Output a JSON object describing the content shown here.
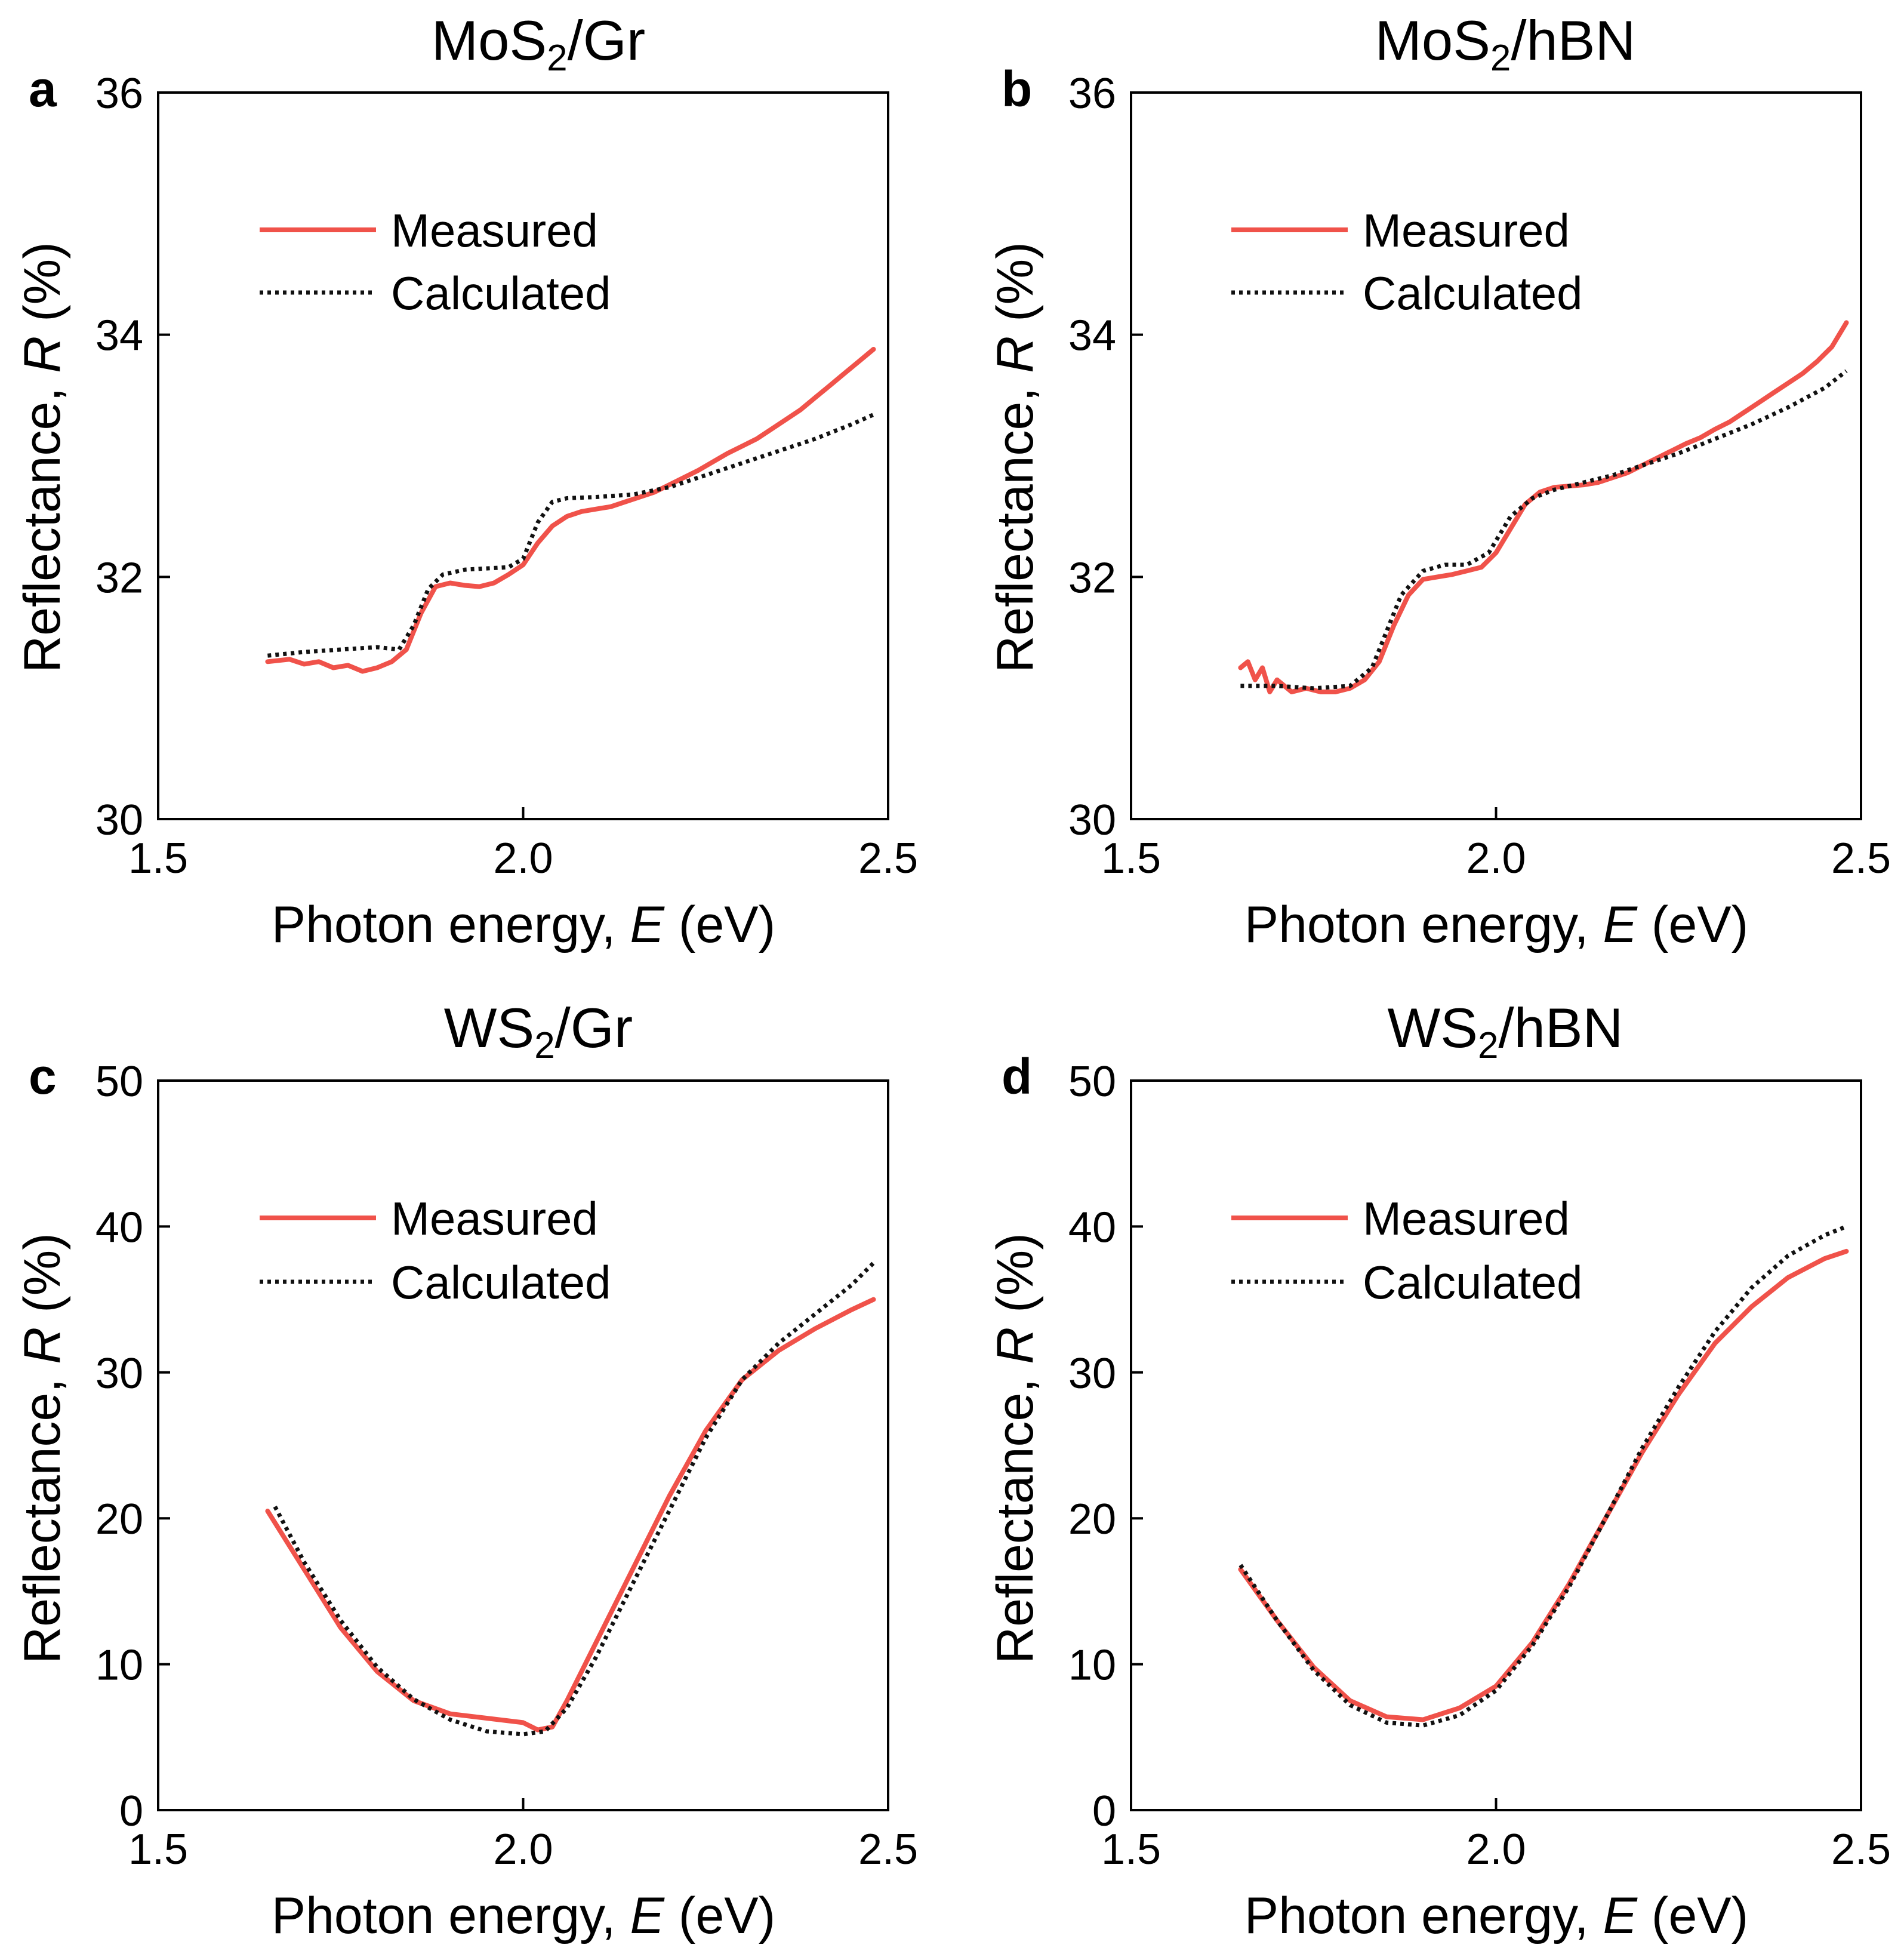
{
  "figure": {
    "colors": {
      "measured": "#f0524a",
      "calculated": "#111111",
      "axis": "#000000"
    },
    "legend": {
      "measured": "Measured",
      "calculated": "Calculated",
      "placement": "top-left"
    }
  },
  "chart_data": [
    {
      "id": "a",
      "panel_letter": "a",
      "type": "line",
      "title": {
        "base": "MoS",
        "sub": "2",
        "rest": "/Gr"
      },
      "xlabel": {
        "before": "Photon energy, ",
        "var": "E",
        "after": " (eV)"
      },
      "ylabel": {
        "before": "Reflectance, ",
        "var": "R",
        "after": " (%)"
      },
      "xlim": [
        1.5,
        2.5
      ],
      "ylim": [
        30,
        36
      ],
      "xticks": [
        1.5,
        2.0,
        2.5
      ],
      "xtick_labels": [
        "1.5",
        "2.0",
        "2.5"
      ],
      "yticks": [
        30,
        32,
        34,
        36
      ],
      "ytick_labels": [
        "30",
        "32",
        "34",
        "36"
      ],
      "series": [
        {
          "name": "Measured",
          "style": "solid",
          "x": [
            1.65,
            1.68,
            1.7,
            1.72,
            1.74,
            1.76,
            1.78,
            1.8,
            1.82,
            1.84,
            1.86,
            1.88,
            1.9,
            1.92,
            1.94,
            1.96,
            1.98,
            2.0,
            2.02,
            2.04,
            2.06,
            2.08,
            2.1,
            2.12,
            2.14,
            2.16,
            2.18,
            2.2,
            2.22,
            2.24,
            2.26,
            2.28,
            2.3,
            2.32,
            2.34,
            2.36,
            2.38,
            2.4,
            2.42,
            2.44,
            2.46,
            2.48
          ],
          "y": [
            31.3,
            31.32,
            31.28,
            31.3,
            31.25,
            31.27,
            31.22,
            31.25,
            31.3,
            31.4,
            31.7,
            31.92,
            31.95,
            31.93,
            31.92,
            31.95,
            32.02,
            32.1,
            32.28,
            32.42,
            32.5,
            32.54,
            32.56,
            32.58,
            32.62,
            32.66,
            32.7,
            32.76,
            32.82,
            32.88,
            32.95,
            33.02,
            33.08,
            33.14,
            33.22,
            33.3,
            33.38,
            33.48,
            33.58,
            33.68,
            33.78,
            33.88
          ]
        },
        {
          "name": "Calculated",
          "style": "dotted",
          "x": [
            1.65,
            1.7,
            1.75,
            1.8,
            1.83,
            1.85,
            1.87,
            1.89,
            1.92,
            1.95,
            1.98,
            2.0,
            2.02,
            2.04,
            2.06,
            2.1,
            2.15,
            2.2,
            2.25,
            2.3,
            2.35,
            2.4,
            2.45,
            2.48
          ],
          "y": [
            31.35,
            31.38,
            31.4,
            31.42,
            31.4,
            31.6,
            31.9,
            32.02,
            32.06,
            32.07,
            32.08,
            32.15,
            32.45,
            32.62,
            32.65,
            32.66,
            32.68,
            32.74,
            32.84,
            32.94,
            33.04,
            33.14,
            33.26,
            33.34
          ]
        }
      ]
    },
    {
      "id": "b",
      "panel_letter": "b",
      "type": "line",
      "title": {
        "base": "MoS",
        "sub": "2",
        "rest": "/hBN"
      },
      "xlabel": {
        "before": "Photon energy, ",
        "var": "E",
        "after": " (eV)"
      },
      "ylabel": {
        "before": "Reflectance, ",
        "var": "R",
        "after": " (%)"
      },
      "xlim": [
        1.5,
        2.5
      ],
      "ylim": [
        30,
        36
      ],
      "xticks": [
        1.5,
        2.0,
        2.5
      ],
      "xtick_labels": [
        "1.5",
        "2.0",
        "2.5"
      ],
      "yticks": [
        30,
        32,
        34,
        36
      ],
      "ytick_labels": [
        "30",
        "32",
        "34",
        "36"
      ],
      "series": [
        {
          "name": "Measured",
          "style": "solid",
          "x": [
            1.65,
            1.66,
            1.67,
            1.68,
            1.69,
            1.7,
            1.72,
            1.74,
            1.76,
            1.78,
            1.8,
            1.82,
            1.84,
            1.86,
            1.88,
            1.9,
            1.92,
            1.94,
            1.96,
            1.98,
            2.0,
            2.02,
            2.04,
            2.06,
            2.08,
            2.1,
            2.12,
            2.14,
            2.16,
            2.18,
            2.2,
            2.22,
            2.24,
            2.26,
            2.28,
            2.3,
            2.32,
            2.34,
            2.36,
            2.38,
            2.4,
            2.42,
            2.44,
            2.46,
            2.47,
            2.48
          ],
          "y": [
            31.25,
            31.3,
            31.15,
            31.25,
            31.05,
            31.15,
            31.05,
            31.08,
            31.05,
            31.05,
            31.08,
            31.15,
            31.3,
            31.6,
            31.85,
            31.98,
            32.0,
            32.02,
            32.05,
            32.08,
            32.2,
            32.4,
            32.6,
            32.7,
            32.74,
            32.75,
            32.76,
            32.78,
            32.82,
            32.86,
            32.92,
            32.98,
            33.04,
            33.1,
            33.15,
            33.22,
            33.28,
            33.36,
            33.44,
            33.52,
            33.6,
            33.68,
            33.78,
            33.9,
            34.0,
            34.1
          ]
        },
        {
          "name": "Calculated",
          "style": "dotted",
          "x": [
            1.65,
            1.7,
            1.75,
            1.8,
            1.83,
            1.85,
            1.87,
            1.9,
            1.93,
            1.96,
            1.99,
            2.02,
            2.05,
            2.08,
            2.12,
            2.16,
            2.2,
            2.25,
            2.3,
            2.35,
            2.4,
            2.45,
            2.48
          ],
          "y": [
            31.1,
            31.1,
            31.08,
            31.1,
            31.25,
            31.55,
            31.85,
            32.05,
            32.1,
            32.1,
            32.2,
            32.5,
            32.65,
            32.72,
            32.78,
            32.84,
            32.92,
            33.02,
            33.14,
            33.26,
            33.4,
            33.56,
            33.7
          ]
        }
      ]
    },
    {
      "id": "c",
      "panel_letter": "c",
      "type": "line",
      "title": {
        "base": "WS",
        "sub": "2",
        "rest": "/Gr"
      },
      "xlabel": {
        "before": "Photon energy, ",
        "var": "E",
        "after": " (eV)"
      },
      "ylabel": {
        "before": "Reflectance, ",
        "var": "R",
        "after": " (%)"
      },
      "xlim": [
        1.5,
        2.5
      ],
      "ylim": [
        0,
        50
      ],
      "xticks": [
        1.5,
        2.0,
        2.5
      ],
      "xtick_labels": [
        "1.5",
        "2.0",
        "2.5"
      ],
      "yticks": [
        0,
        10,
        20,
        30,
        40,
        50
      ],
      "ytick_labels": [
        "0",
        "10",
        "20",
        "30",
        "40",
        "50"
      ],
      "series": [
        {
          "name": "Measured",
          "style": "solid",
          "x": [
            1.65,
            1.7,
            1.75,
            1.8,
            1.85,
            1.9,
            1.95,
            2.0,
            2.02,
            2.04,
            2.06,
            2.1,
            2.15,
            2.2,
            2.25,
            2.3,
            2.35,
            2.4,
            2.45,
            2.48
          ],
          "y": [
            20.5,
            16.5,
            12.5,
            9.5,
            7.5,
            6.6,
            6.3,
            6.0,
            5.5,
            5.7,
            7.5,
            11.5,
            16.5,
            21.5,
            26.0,
            29.5,
            31.5,
            33.0,
            34.3,
            35.0
          ]
        },
        {
          "name": "Calculated",
          "style": "dotted",
          "x": [
            1.66,
            1.7,
            1.75,
            1.8,
            1.85,
            1.9,
            1.95,
            2.0,
            2.03,
            2.06,
            2.1,
            2.15,
            2.2,
            2.25,
            2.3,
            2.35,
            2.4,
            2.45,
            2.48
          ],
          "y": [
            20.8,
            17.0,
            13.0,
            9.8,
            7.6,
            6.2,
            5.4,
            5.2,
            5.4,
            7.0,
            10.5,
            15.5,
            20.5,
            25.5,
            29.5,
            32.0,
            34.0,
            36.0,
            37.5
          ]
        }
      ]
    },
    {
      "id": "d",
      "panel_letter": "d",
      "type": "line",
      "title": {
        "base": "WS",
        "sub": "2",
        "rest": "/hBN"
      },
      "xlabel": {
        "before": "Photon energy, ",
        "var": "E",
        "after": " (eV)"
      },
      "ylabel": {
        "before": "Reflectance, ",
        "var": "R",
        "after": " (%)"
      },
      "xlim": [
        1.5,
        2.5
      ],
      "ylim": [
        0,
        50
      ],
      "xticks": [
        1.5,
        2.0,
        2.5
      ],
      "xtick_labels": [
        "1.5",
        "2.0",
        "2.5"
      ],
      "yticks": [
        0,
        10,
        20,
        30,
        40,
        50
      ],
      "ytick_labels": [
        "0",
        "10",
        "20",
        "30",
        "40",
        "50"
      ],
      "series": [
        {
          "name": "Measured",
          "style": "solid",
          "x": [
            1.65,
            1.7,
            1.75,
            1.8,
            1.85,
            1.9,
            1.95,
            2.0,
            2.05,
            2.1,
            2.15,
            2.2,
            2.25,
            2.3,
            2.35,
            2.4,
            2.45,
            2.48
          ],
          "y": [
            16.5,
            13.0,
            9.8,
            7.5,
            6.4,
            6.2,
            7.0,
            8.5,
            11.5,
            15.5,
            20.0,
            24.5,
            28.5,
            32.0,
            34.5,
            36.5,
            37.8,
            38.3
          ]
        },
        {
          "name": "Calculated",
          "style": "dotted",
          "x": [
            1.65,
            1.7,
            1.75,
            1.8,
            1.85,
            1.9,
            1.95,
            2.0,
            2.05,
            2.1,
            2.15,
            2.2,
            2.25,
            2.3,
            2.35,
            2.4,
            2.45,
            2.48
          ],
          "y": [
            16.8,
            13.0,
            9.6,
            7.2,
            6.0,
            5.8,
            6.5,
            8.2,
            11.3,
            15.3,
            20.0,
            24.8,
            29.0,
            32.8,
            35.8,
            38.0,
            39.4,
            40.0
          ]
        }
      ]
    }
  ]
}
